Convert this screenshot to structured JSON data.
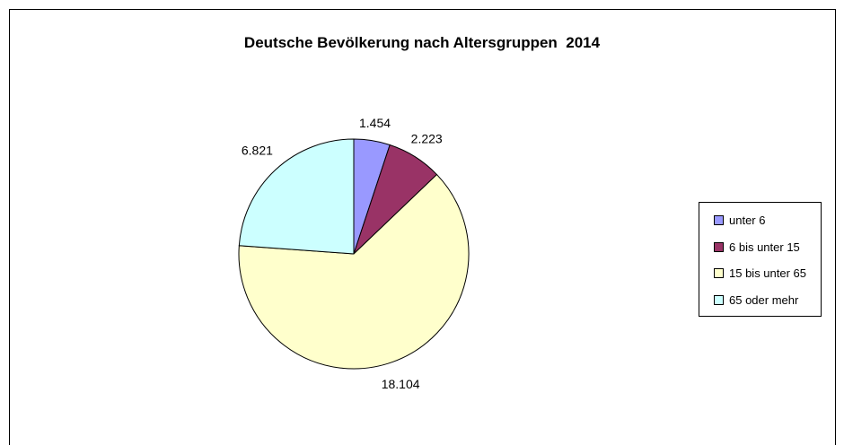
{
  "chart_data": {
    "type": "pie",
    "title": "Deutsche Bevölkerung nach Altersgruppen  2014",
    "categories": [
      "unter 6",
      "6 bis unter 15",
      "15 bis unter 65",
      "65 oder mehr"
    ],
    "values": [
      1454,
      2223,
      18104,
      6821
    ],
    "data_labels": [
      "1.454",
      "2.223",
      "18.104",
      "6.821"
    ],
    "colors": [
      "#9999ff",
      "#993366",
      "#ffffcc",
      "#ccffff"
    ],
    "legend_position": "right",
    "start_angle": "12 o'clock",
    "direction": "clockwise"
  }
}
